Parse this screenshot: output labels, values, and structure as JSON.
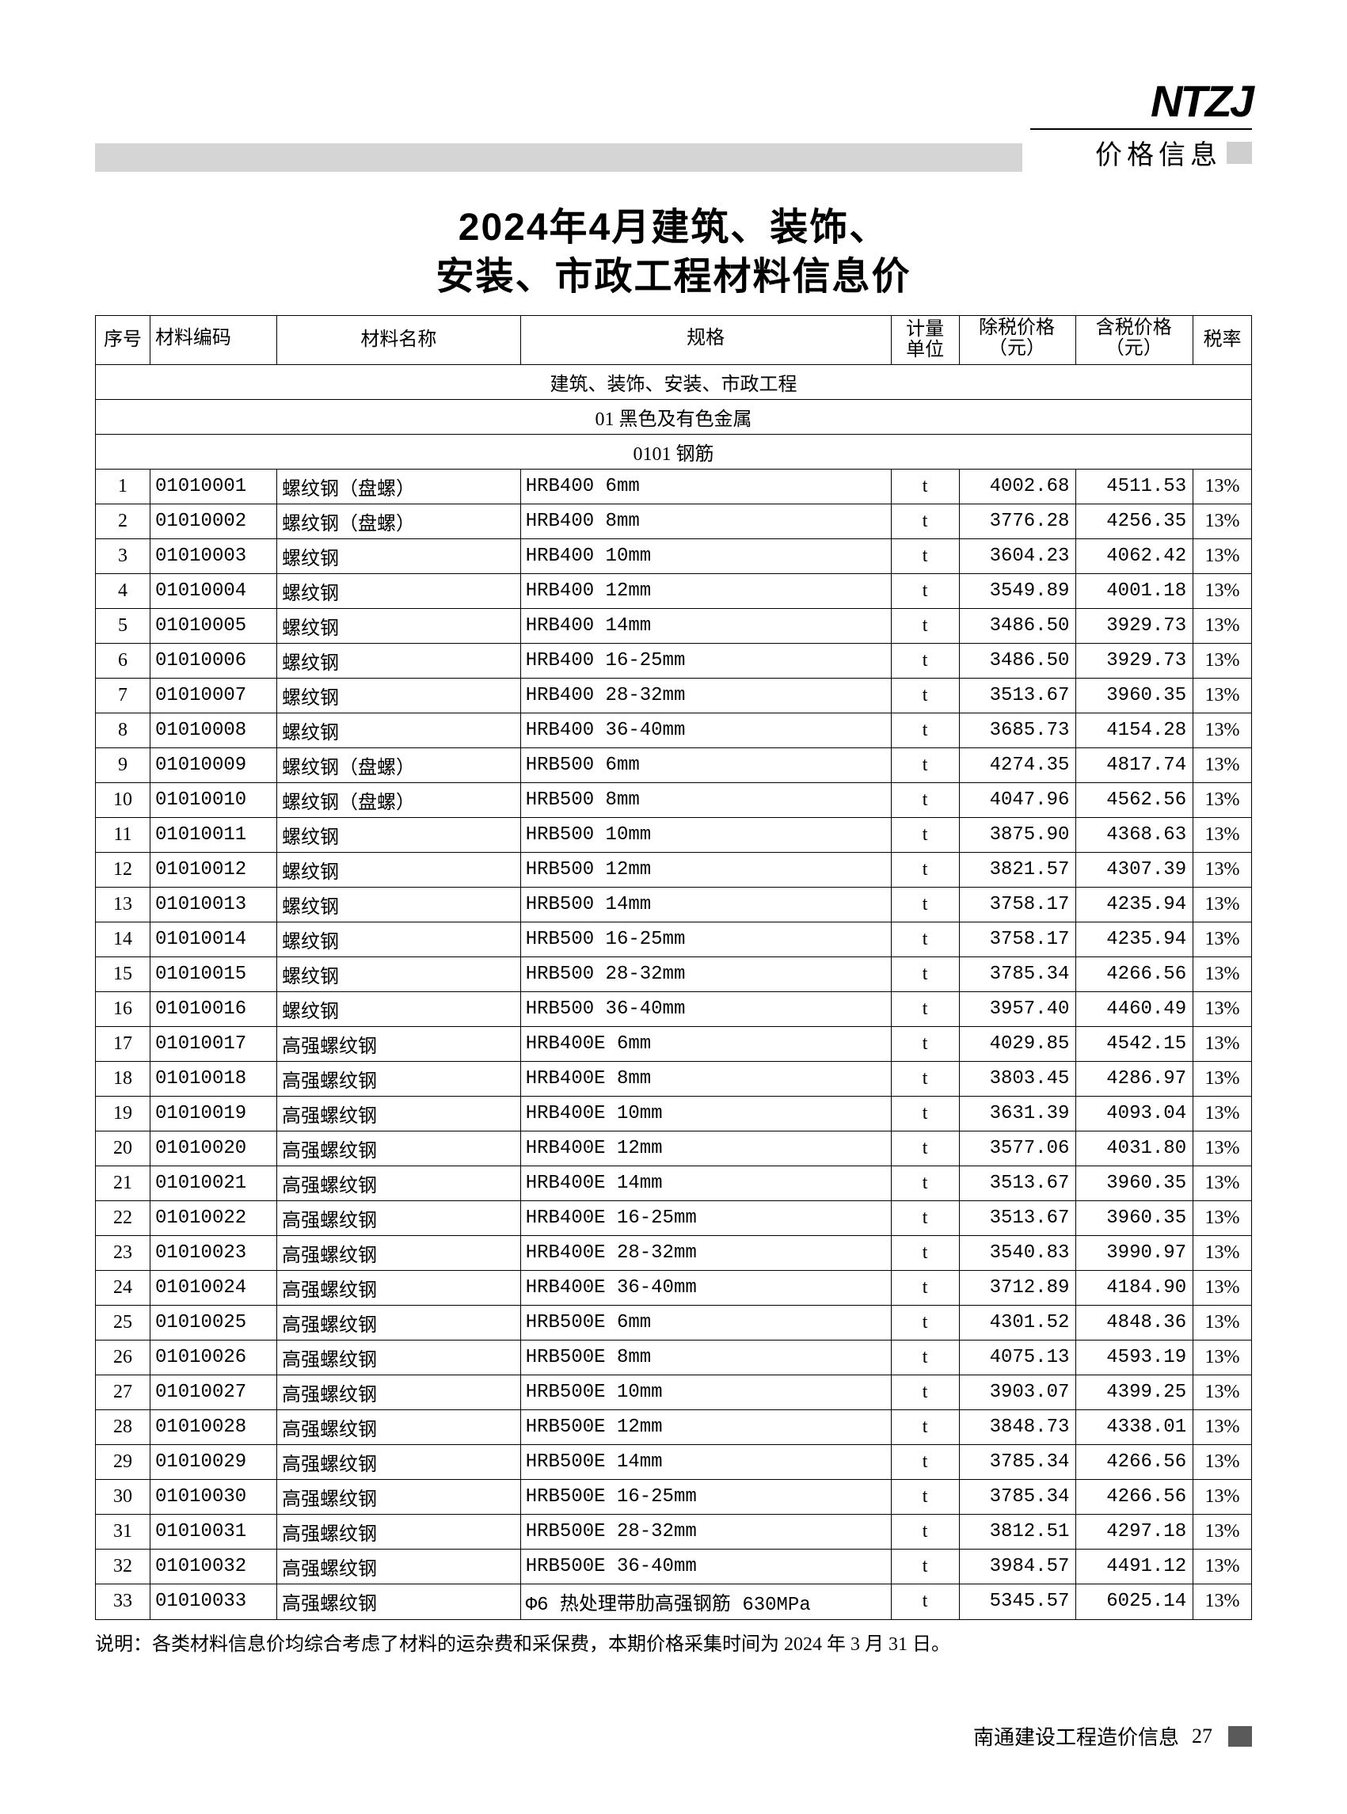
{
  "header": {
    "logo_text": "NTZJ",
    "section_label": "价格信息"
  },
  "title_line1": "2024年4月建筑、装饰、",
  "title_line2": "安装、市政工程材料信息价",
  "columns": [
    "序号",
    "材料编码",
    "材料名称",
    "规格",
    "计量\n单位",
    "除税价格\n（元）",
    "含税价格\n（元）",
    "税率"
  ],
  "section_headers": {
    "main": "建筑、装饰、安装、市政工程",
    "sub1": "01 黑色及有色金属",
    "sub2": "0101 钢筋"
  },
  "rows": [
    {
      "seq": "1",
      "code": "01010001",
      "name": "螺纹钢（盘螺）",
      "spec": "HRB400 6mm",
      "unit": "t",
      "p1": "4002.68",
      "p2": "4511.53",
      "tax": "13%"
    },
    {
      "seq": "2",
      "code": "01010002",
      "name": "螺纹钢（盘螺）",
      "spec": "HRB400 8mm",
      "unit": "t",
      "p1": "3776.28",
      "p2": "4256.35",
      "tax": "13%"
    },
    {
      "seq": "3",
      "code": "01010003",
      "name": "螺纹钢",
      "spec": "HRB400 10mm",
      "unit": "t",
      "p1": "3604.23",
      "p2": "4062.42",
      "tax": "13%"
    },
    {
      "seq": "4",
      "code": "01010004",
      "name": "螺纹钢",
      "spec": "HRB400 12mm",
      "unit": "t",
      "p1": "3549.89",
      "p2": "4001.18",
      "tax": "13%"
    },
    {
      "seq": "5",
      "code": "01010005",
      "name": "螺纹钢",
      "spec": "HRB400 14mm",
      "unit": "t",
      "p1": "3486.50",
      "p2": "3929.73",
      "tax": "13%"
    },
    {
      "seq": "6",
      "code": "01010006",
      "name": "螺纹钢",
      "spec": "HRB400 16-25mm",
      "unit": "t",
      "p1": "3486.50",
      "p2": "3929.73",
      "tax": "13%"
    },
    {
      "seq": "7",
      "code": "01010007",
      "name": "螺纹钢",
      "spec": "HRB400 28-32mm",
      "unit": "t",
      "p1": "3513.67",
      "p2": "3960.35",
      "tax": "13%"
    },
    {
      "seq": "8",
      "code": "01010008",
      "name": "螺纹钢",
      "spec": "HRB400 36-40mm",
      "unit": "t",
      "p1": "3685.73",
      "p2": "4154.28",
      "tax": "13%"
    },
    {
      "seq": "9",
      "code": "01010009",
      "name": "螺纹钢（盘螺）",
      "spec": "HRB500 6mm",
      "unit": "t",
      "p1": "4274.35",
      "p2": "4817.74",
      "tax": "13%"
    },
    {
      "seq": "10",
      "code": "01010010",
      "name": "螺纹钢（盘螺）",
      "spec": "HRB500 8mm",
      "unit": "t",
      "p1": "4047.96",
      "p2": "4562.56",
      "tax": "13%"
    },
    {
      "seq": "11",
      "code": "01010011",
      "name": "螺纹钢",
      "spec": "HRB500 10mm",
      "unit": "t",
      "p1": "3875.90",
      "p2": "4368.63",
      "tax": "13%"
    },
    {
      "seq": "12",
      "code": "01010012",
      "name": "螺纹钢",
      "spec": "HRB500 12mm",
      "unit": "t",
      "p1": "3821.57",
      "p2": "4307.39",
      "tax": "13%"
    },
    {
      "seq": "13",
      "code": "01010013",
      "name": "螺纹钢",
      "spec": "HRB500 14mm",
      "unit": "t",
      "p1": "3758.17",
      "p2": "4235.94",
      "tax": "13%"
    },
    {
      "seq": "14",
      "code": "01010014",
      "name": "螺纹钢",
      "spec": "HRB500 16-25mm",
      "unit": "t",
      "p1": "3758.17",
      "p2": "4235.94",
      "tax": "13%"
    },
    {
      "seq": "15",
      "code": "01010015",
      "name": "螺纹钢",
      "spec": "HRB500 28-32mm",
      "unit": "t",
      "p1": "3785.34",
      "p2": "4266.56",
      "tax": "13%"
    },
    {
      "seq": "16",
      "code": "01010016",
      "name": "螺纹钢",
      "spec": "HRB500 36-40mm",
      "unit": "t",
      "p1": "3957.40",
      "p2": "4460.49",
      "tax": "13%"
    },
    {
      "seq": "17",
      "code": "01010017",
      "name": "高强螺纹钢",
      "spec": "HRB400E 6mm",
      "unit": "t",
      "p1": "4029.85",
      "p2": "4542.15",
      "tax": "13%"
    },
    {
      "seq": "18",
      "code": "01010018",
      "name": "高强螺纹钢",
      "spec": "HRB400E 8mm",
      "unit": "t",
      "p1": "3803.45",
      "p2": "4286.97",
      "tax": "13%"
    },
    {
      "seq": "19",
      "code": "01010019",
      "name": "高强螺纹钢",
      "spec": "HRB400E 10mm",
      "unit": "t",
      "p1": "3631.39",
      "p2": "4093.04",
      "tax": "13%"
    },
    {
      "seq": "20",
      "code": "01010020",
      "name": "高强螺纹钢",
      "spec": "HRB400E 12mm",
      "unit": "t",
      "p1": "3577.06",
      "p2": "4031.80",
      "tax": "13%"
    },
    {
      "seq": "21",
      "code": "01010021",
      "name": "高强螺纹钢",
      "spec": "HRB400E 14mm",
      "unit": "t",
      "p1": "3513.67",
      "p2": "3960.35",
      "tax": "13%"
    },
    {
      "seq": "22",
      "code": "01010022",
      "name": "高强螺纹钢",
      "spec": "HRB400E 16-25mm",
      "unit": "t",
      "p1": "3513.67",
      "p2": "3960.35",
      "tax": "13%"
    },
    {
      "seq": "23",
      "code": "01010023",
      "name": "高强螺纹钢",
      "spec": "HRB400E 28-32mm",
      "unit": "t",
      "p1": "3540.83",
      "p2": "3990.97",
      "tax": "13%"
    },
    {
      "seq": "24",
      "code": "01010024",
      "name": "高强螺纹钢",
      "spec": "HRB400E 36-40mm",
      "unit": "t",
      "p1": "3712.89",
      "p2": "4184.90",
      "tax": "13%"
    },
    {
      "seq": "25",
      "code": "01010025",
      "name": "高强螺纹钢",
      "spec": "HRB500E 6mm",
      "unit": "t",
      "p1": "4301.52",
      "p2": "4848.36",
      "tax": "13%"
    },
    {
      "seq": "26",
      "code": "01010026",
      "name": "高强螺纹钢",
      "spec": "HRB500E 8mm",
      "unit": "t",
      "p1": "4075.13",
      "p2": "4593.19",
      "tax": "13%"
    },
    {
      "seq": "27",
      "code": "01010027",
      "name": "高强螺纹钢",
      "spec": "HRB500E 10mm",
      "unit": "t",
      "p1": "3903.07",
      "p2": "4399.25",
      "tax": "13%"
    },
    {
      "seq": "28",
      "code": "01010028",
      "name": "高强螺纹钢",
      "spec": "HRB500E 12mm",
      "unit": "t",
      "p1": "3848.73",
      "p2": "4338.01",
      "tax": "13%"
    },
    {
      "seq": "29",
      "code": "01010029",
      "name": "高强螺纹钢",
      "spec": "HRB500E 14mm",
      "unit": "t",
      "p1": "3785.34",
      "p2": "4266.56",
      "tax": "13%"
    },
    {
      "seq": "30",
      "code": "01010030",
      "name": "高强螺纹钢",
      "spec": "HRB500E 16-25mm",
      "unit": "t",
      "p1": "3785.34",
      "p2": "4266.56",
      "tax": "13%"
    },
    {
      "seq": "31",
      "code": "01010031",
      "name": "高强螺纹钢",
      "spec": "HRB500E 28-32mm",
      "unit": "t",
      "p1": "3812.51",
      "p2": "4297.18",
      "tax": "13%"
    },
    {
      "seq": "32",
      "code": "01010032",
      "name": "高强螺纹钢",
      "spec": "HRB500E 36-40mm",
      "unit": "t",
      "p1": "3984.57",
      "p2": "4491.12",
      "tax": "13%"
    },
    {
      "seq": "33",
      "code": "01010033",
      "name": "高强螺纹钢",
      "spec": "Φ6 热处理带肋高强钢筋 630MPa",
      "unit": "t",
      "p1": "5345.57",
      "p2": "6025.14",
      "tax": "13%"
    }
  ],
  "note": "说明：各类材料信息价均综合考虑了材料的运杂费和采保费，本期价格采集时间为 2024 年 3 月 31 日。",
  "footer": {
    "publication": "南通建设工程造价信息",
    "page_number": "27"
  }
}
